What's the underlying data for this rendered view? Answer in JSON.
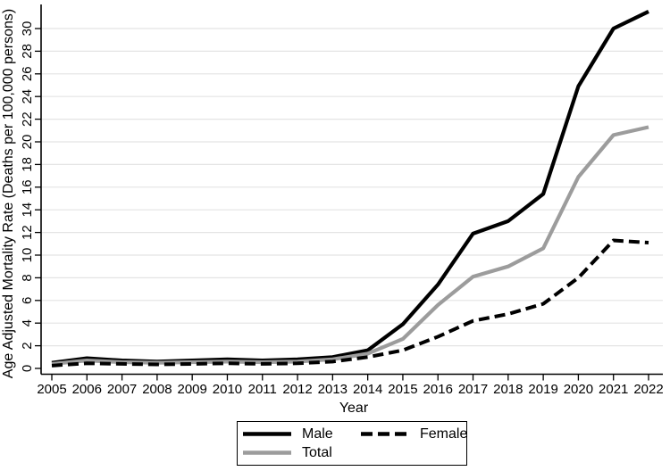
{
  "figure": {
    "background": "#ffffff",
    "text_color": "#000000"
  },
  "chart_data": {
    "type": "line",
    "title": "",
    "xlabel": "Year",
    "ylabel": "Age Adjusted Mortality Rate (Deaths per 100,000 persons)",
    "x": [
      2005,
      2006,
      2007,
      2008,
      2009,
      2010,
      2011,
      2012,
      2013,
      2014,
      2015,
      2016,
      2017,
      2018,
      2019,
      2020,
      2021,
      2022
    ],
    "xlim": [
      2005,
      2022
    ],
    "ylim": [
      0,
      32
    ],
    "yticks": [
      0,
      2,
      4,
      6,
      8,
      10,
      12,
      14,
      16,
      18,
      20,
      22,
      24,
      26,
      28,
      30
    ],
    "grid": "horizontal",
    "gridline_color": "#e4e4e4",
    "axis_color": "#000000",
    "series": [
      {
        "name": "Male",
        "color": "#000000",
        "line_style": "solid",
        "line_width": 4.2,
        "values": [
          0.5,
          0.9,
          0.7,
          0.6,
          0.7,
          0.8,
          0.7,
          0.8,
          1.0,
          1.6,
          3.9,
          7.4,
          11.9,
          13.0,
          15.4,
          24.9,
          30.0,
          31.5
        ]
      },
      {
        "name": "Total",
        "color": "#9c9c9c",
        "line_style": "solid",
        "line_width": 4.2,
        "values": [
          0.4,
          0.7,
          0.55,
          0.5,
          0.55,
          0.6,
          0.55,
          0.6,
          0.8,
          1.3,
          2.6,
          5.6,
          8.1,
          9.0,
          10.6,
          16.9,
          20.6,
          21.3
        ]
      },
      {
        "name": "Female",
        "color": "#000000",
        "line_style": "dashed",
        "line_width": 4.0,
        "values": [
          0.25,
          0.45,
          0.4,
          0.35,
          0.4,
          0.45,
          0.4,
          0.45,
          0.6,
          1.0,
          1.6,
          2.8,
          4.2,
          4.8,
          5.7,
          8.0,
          11.3,
          11.1
        ]
      }
    ],
    "legend": {
      "position": "bottom-center",
      "border": true,
      "order": [
        "Male",
        "Female",
        "Total"
      ]
    }
  }
}
